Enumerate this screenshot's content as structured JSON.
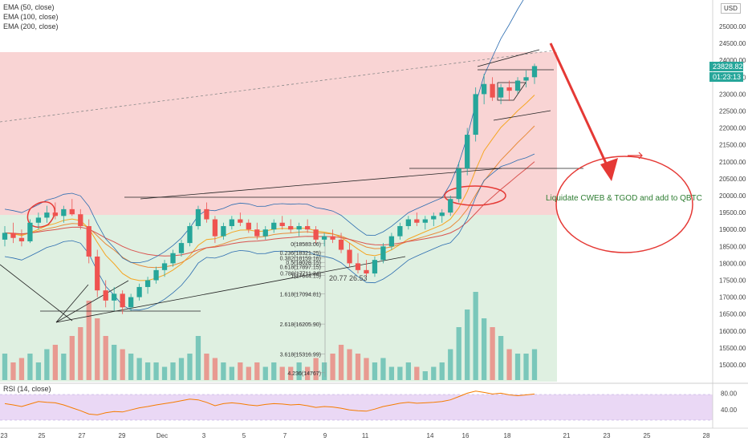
{
  "chart_data": {
    "type": "candlestick",
    "currency": "USD",
    "indicators": [
      "EMA (50, close)",
      "EMA (100, close)",
      "EMA (200, close)"
    ],
    "rsi_label": "RSI (14, close)",
    "x_ticks": [
      "23",
      "25",
      "27",
      "29",
      "Dec",
      "3",
      "5",
      "7",
      "9",
      "11",
      "14",
      "16",
      "18",
      "21",
      "23",
      "25",
      "28"
    ],
    "y_ticks": [
      "25000.00",
      "24500.00",
      "24000.00",
      "23500.00",
      "23000.00",
      "22500.00",
      "22000.00",
      "21500.00",
      "21000.00",
      "20500.00",
      "20000.00",
      "19500.00",
      "19000.00",
      "18500.00",
      "18000.00",
      "17500.00",
      "17000.00",
      "16500.00",
      "16000.00",
      "15500.00",
      "15000.00"
    ],
    "rsi_ticks": [
      "80.00",
      "40.00"
    ],
    "last_price": "23828.82",
    "countdown": "01:23:13",
    "fib_levels": [
      {
        "ratio": "0",
        "price": "18583.06",
        "label": "0(18583.06)"
      },
      {
        "ratio": "0.236",
        "price": "18321.25",
        "label": "0.236(18321.25)"
      },
      {
        "ratio": "0.382",
        "price": "18159.16",
        "label": "0.382(18159.16)"
      },
      {
        "ratio": "0.5",
        "price": "18028.15",
        "label": "0.5(18028.15)"
      },
      {
        "ratio": "0.618",
        "price": "17897.15",
        "label": "0.618(17897.15)"
      },
      {
        "ratio": "0.786",
        "price": "17711.34",
        "label": "0.786(17711.34)"
      },
      {
        "ratio": "1",
        "price": "17644.15",
        "label": "1(17644.15)"
      },
      {
        "ratio": "1.618",
        "price": "17094.81",
        "label": "1.618(17094.81)"
      },
      {
        "ratio": "2.618",
        "price": "16205.90",
        "label": "2.618(16205.90)"
      },
      {
        "ratio": "3.618",
        "price": "15316.99",
        "label": "3.618(15316.99)"
      },
      {
        "ratio": "4.236",
        "price": "14767",
        "label": "4.236(14767)"
      }
    ],
    "annotations": [
      "Liquidate CWEB & TGOD and add to QBTC",
      "20.77 26.53"
    ],
    "candles": [
      {
        "o": 18700,
        "h": 19100,
        "l": 18500,
        "c": 18900
      },
      {
        "o": 18900,
        "h": 19200,
        "l": 18600,
        "c": 18750
      },
      {
        "o": 18750,
        "h": 19000,
        "l": 18500,
        "c": 18650
      },
      {
        "o": 18650,
        "h": 19300,
        "l": 18600,
        "c": 19200
      },
      {
        "o": 19200,
        "h": 19500,
        "l": 19000,
        "c": 19350
      },
      {
        "o": 19350,
        "h": 19700,
        "l": 19200,
        "c": 19500
      },
      {
        "o": 19500,
        "h": 19800,
        "l": 19300,
        "c": 19400
      },
      {
        "o": 19400,
        "h": 19700,
        "l": 19200,
        "c": 19600
      },
      {
        "o": 19600,
        "h": 19900,
        "l": 19400,
        "c": 19450
      },
      {
        "o": 19450,
        "h": 19600,
        "l": 19000,
        "c": 19100
      },
      {
        "o": 19100,
        "h": 19300,
        "l": 18000,
        "c": 18200
      },
      {
        "o": 18200,
        "h": 18400,
        "l": 17000,
        "c": 17200
      },
      {
        "o": 17200,
        "h": 17500,
        "l": 16700,
        "c": 16900
      },
      {
        "o": 16900,
        "h": 17300,
        "l": 16600,
        "c": 17100
      },
      {
        "o": 17100,
        "h": 17200,
        "l": 16500,
        "c": 16700
      },
      {
        "o": 16700,
        "h": 17100,
        "l": 16600,
        "c": 17000
      },
      {
        "o": 17000,
        "h": 17400,
        "l": 16900,
        "c": 17300
      },
      {
        "o": 17300,
        "h": 17600,
        "l": 17100,
        "c": 17500
      },
      {
        "o": 17500,
        "h": 17900,
        "l": 17400,
        "c": 17800
      },
      {
        "o": 17800,
        "h": 18100,
        "l": 17600,
        "c": 18000
      },
      {
        "o": 18000,
        "h": 18400,
        "l": 17900,
        "c": 18300
      },
      {
        "o": 18300,
        "h": 18700,
        "l": 18200,
        "c": 18600
      },
      {
        "o": 18600,
        "h": 19200,
        "l": 18500,
        "c": 19100
      },
      {
        "o": 19100,
        "h": 19700,
        "l": 19000,
        "c": 19600
      },
      {
        "o": 19600,
        "h": 19800,
        "l": 19200,
        "c": 19300
      },
      {
        "o": 19300,
        "h": 19400,
        "l": 18600,
        "c": 18800
      },
      {
        "o": 18800,
        "h": 19200,
        "l": 18700,
        "c": 19100
      },
      {
        "o": 19100,
        "h": 19400,
        "l": 19000,
        "c": 19300
      },
      {
        "o": 19300,
        "h": 19500,
        "l": 19100,
        "c": 19200
      },
      {
        "o": 19200,
        "h": 19300,
        "l": 18900,
        "c": 19000
      },
      {
        "o": 19000,
        "h": 19200,
        "l": 18700,
        "c": 18800
      },
      {
        "o": 18800,
        "h": 19100,
        "l": 18700,
        "c": 19000
      },
      {
        "o": 19000,
        "h": 19300,
        "l": 18900,
        "c": 19200
      },
      {
        "o": 19200,
        "h": 19400,
        "l": 19000,
        "c": 19100
      },
      {
        "o": 19100,
        "h": 19300,
        "l": 18900,
        "c": 19000
      },
      {
        "o": 19000,
        "h": 19200,
        "l": 18800,
        "c": 19100
      },
      {
        "o": 19100,
        "h": 19300,
        "l": 18900,
        "c": 19000
      },
      {
        "o": 19000,
        "h": 19100,
        "l": 18600,
        "c": 18700
      },
      {
        "o": 18700,
        "h": 18900,
        "l": 18500,
        "c": 18800
      },
      {
        "o": 18800,
        "h": 19000,
        "l": 18600,
        "c": 18700
      },
      {
        "o": 18700,
        "h": 18900,
        "l": 18300,
        "c": 18400
      },
      {
        "o": 18400,
        "h": 18600,
        "l": 17900,
        "c": 18000
      },
      {
        "o": 18000,
        "h": 18300,
        "l": 17700,
        "c": 17800
      },
      {
        "o": 17800,
        "h": 18100,
        "l": 17600,
        "c": 17700
      },
      {
        "o": 17700,
        "h": 18200,
        "l": 17600,
        "c": 18100
      },
      {
        "o": 18100,
        "h": 18600,
        "l": 18000,
        "c": 18500
      },
      {
        "o": 18500,
        "h": 18900,
        "l": 18400,
        "c": 18800
      },
      {
        "o": 18800,
        "h": 19200,
        "l": 18700,
        "c": 19100
      },
      {
        "o": 19100,
        "h": 19400,
        "l": 19000,
        "c": 19300
      },
      {
        "o": 19300,
        "h": 19500,
        "l": 19100,
        "c": 19200
      },
      {
        "o": 19200,
        "h": 19400,
        "l": 19000,
        "c": 19300
      },
      {
        "o": 19300,
        "h": 19500,
        "l": 19100,
        "c": 19400
      },
      {
        "o": 19400,
        "h": 19600,
        "l": 19200,
        "c": 19500
      },
      {
        "o": 19500,
        "h": 20000,
        "l": 19400,
        "c": 19900
      },
      {
        "o": 19900,
        "h": 21000,
        "l": 19800,
        "c": 20800
      },
      {
        "o": 20800,
        "h": 22000,
        "l": 20600,
        "c": 21800
      },
      {
        "o": 21800,
        "h": 23200,
        "l": 21600,
        "c": 23000
      },
      {
        "o": 23000,
        "h": 23600,
        "l": 22700,
        "c": 23300
      },
      {
        "o": 23300,
        "h": 23500,
        "l": 22800,
        "c": 22900
      },
      {
        "o": 22900,
        "h": 23300,
        "l": 22700,
        "c": 23200
      },
      {
        "o": 23200,
        "h": 23400,
        "l": 22800,
        "c": 23100
      },
      {
        "o": 23100,
        "h": 23500,
        "l": 23000,
        "c": 23400
      },
      {
        "o": 23400,
        "h": 23700,
        "l": 23200,
        "c": 23500
      },
      {
        "o": 23500,
        "h": 23900,
        "l": 23300,
        "c": 23829
      }
    ],
    "rsi": [
      55,
      52,
      48,
      54,
      60,
      58,
      57,
      52,
      45,
      38,
      30,
      28,
      33,
      36,
      35,
      40,
      45,
      48,
      52,
      55,
      58,
      62,
      66,
      64,
      58,
      50,
      55,
      57,
      55,
      52,
      50,
      53,
      55,
      54,
      52,
      53,
      50,
      46,
      48,
      47,
      44,
      40,
      38,
      37,
      42,
      48,
      52,
      56,
      58,
      56,
      57,
      58,
      60,
      64,
      72,
      80,
      85,
      82,
      78,
      80,
      76,
      74,
      76,
      78
    ],
    "volumes": [
      0.3,
      0.2,
      0.25,
      0.3,
      0.2,
      0.35,
      0.4,
      0.3,
      0.5,
      0.6,
      0.9,
      0.7,
      0.5,
      0.4,
      0.35,
      0.3,
      0.25,
      0.2,
      0.2,
      0.15,
      0.2,
      0.25,
      0.3,
      0.5,
      0.3,
      0.25,
      0.2,
      0.15,
      0.2,
      0.15,
      0.2,
      0.15,
      0.2,
      0.15,
      0.15,
      0.2,
      0.15,
      0.25,
      0.2,
      0.3,
      0.4,
      0.35,
      0.3,
      0.25,
      0.2,
      0.25,
      0.15,
      0.15,
      0.2,
      0.15,
      0.1,
      0.15,
      0.2,
      0.35,
      0.6,
      0.8,
      1.0,
      0.7,
      0.6,
      0.5,
      0.35,
      0.3,
      0.3,
      0.35
    ]
  },
  "colors": {
    "up": "#26a69a",
    "down": "#ef5350",
    "ema50": "#f5a623",
    "ema100": "#e88b3a",
    "ema200": "#d9534f",
    "bollinger": "#2b6cb0",
    "annotation": "#e53935",
    "liquidate_text": "#2e7d32",
    "loss_zone": "#f8c9c9",
    "profit_zone": "#d7ecd9",
    "rsi_band": "#ead8f5",
    "rsi_line": "#f57c00"
  }
}
